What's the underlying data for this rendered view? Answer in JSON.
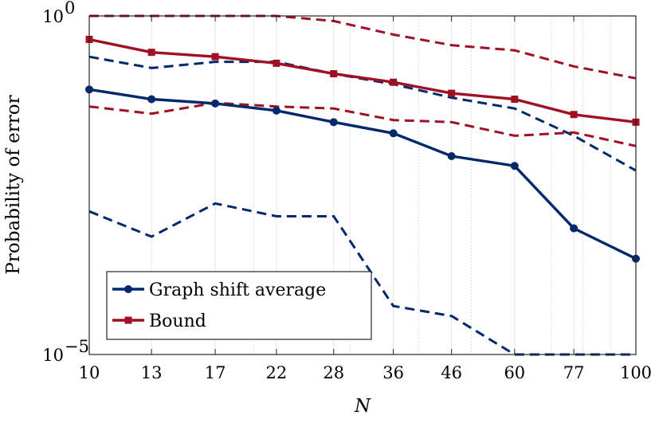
{
  "chart_data": {
    "type": "line",
    "title": "",
    "xlabel": "N",
    "ylabel": "Probability of error",
    "xscale": "log",
    "yscale": "log",
    "xlim": [
      10,
      100
    ],
    "ylim": [
      1e-05,
      1
    ],
    "x": [
      10,
      13,
      17,
      22,
      28,
      36,
      46,
      60,
      77,
      100
    ],
    "x_tick_labels": [
      "10",
      "13",
      "17",
      "22",
      "28",
      "36",
      "46",
      "60",
      "77",
      "100"
    ],
    "y_tick_labels": [
      {
        "value": 1,
        "base": "10",
        "exp": "0"
      },
      {
        "value": 1e-05,
        "base": "10",
        "exp": "−5"
      }
    ],
    "grid": true,
    "legend_position": "bottom-left",
    "series": [
      {
        "name": "Graph shift average",
        "color": "#00296b",
        "marker": "circle",
        "values": [
          0.082,
          0.059,
          0.051,
          0.04,
          0.027,
          0.0185,
          0.0085,
          0.0061,
          0.00073,
          0.00026
        ],
        "lower_bound": [
          0.0013,
          0.00055,
          0.0017,
          0.0011,
          0.0011,
          5.2e-05,
          3.7e-05,
          1e-05,
          1e-05,
          1e-05
        ],
        "upper_bound": [
          0.25,
          0.17,
          0.21,
          0.21,
          0.14,
          0.098,
          0.062,
          0.043,
          0.017,
          0.0052
        ]
      },
      {
        "name": "Bound",
        "color": "#a00f24",
        "marker": "square",
        "values": [
          0.45,
          0.29,
          0.25,
          0.2,
          0.14,
          0.105,
          0.072,
          0.059,
          0.035,
          0.027
        ],
        "lower_bound": [
          0.046,
          0.036,
          0.052,
          0.046,
          0.043,
          0.029,
          0.027,
          0.017,
          0.019,
          0.012
        ],
        "upper_bound": [
          1.0,
          1.0,
          1.0,
          1.0,
          0.84,
          0.53,
          0.37,
          0.31,
          0.18,
          0.12
        ]
      }
    ]
  }
}
